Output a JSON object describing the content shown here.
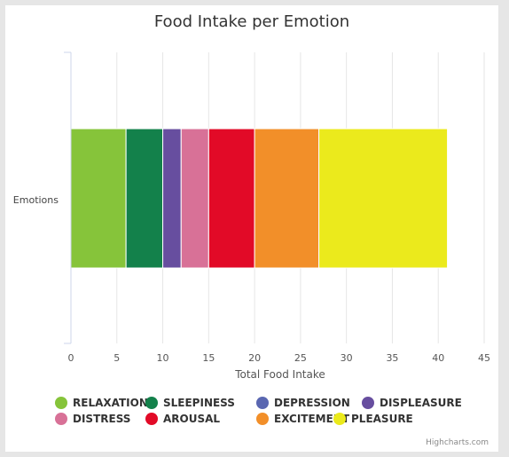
{
  "chart_data": {
    "type": "bar",
    "orientation": "horizontal",
    "stacking": "normal",
    "title": "Food Intake per Emotion",
    "categories": [
      "Emotions"
    ],
    "xlabel": "Total Food Intake",
    "xlim": [
      0,
      45
    ],
    "xticks": [
      0,
      5,
      10,
      15,
      20,
      25,
      30,
      35,
      40,
      45
    ],
    "grid": true,
    "legend": "bottom",
    "series": [
      {
        "name": "RELAXATION",
        "values": [
          6
        ],
        "color": "#86c43a"
      },
      {
        "name": "SLEEPINESS",
        "values": [
          4
        ],
        "color": "#13814b"
      },
      {
        "name": "DEPRESSION",
        "values": [
          0
        ],
        "color": "#5a67b1"
      },
      {
        "name": "DISPLEASURE",
        "values": [
          2
        ],
        "color": "#674e9f"
      },
      {
        "name": "DISTRESS",
        "values": [
          3
        ],
        "color": "#d87197"
      },
      {
        "name": "AROUSAL",
        "values": [
          5
        ],
        "color": "#e20a27"
      },
      {
        "name": "EXCITEMENT",
        "values": [
          7
        ],
        "color": "#f28f29"
      },
      {
        "name": "PLEASURE",
        "values": [
          14
        ],
        "color": "#ebea1c"
      }
    ],
    "credits": "Highcharts.com"
  }
}
